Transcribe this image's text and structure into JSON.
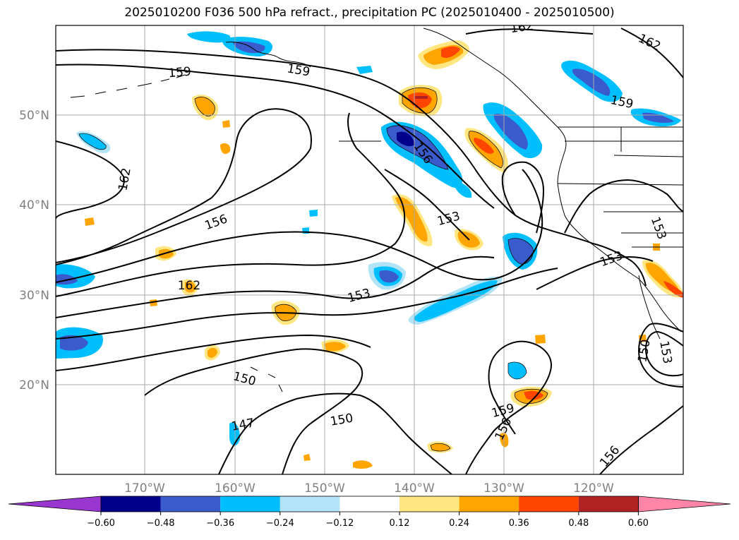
{
  "title": "2025010200 F036 500 hPa refract., precipitation PC (2025010400 - 2025010500)",
  "lat_labels": [
    "50°N",
    "40°N",
    "30°N",
    "20°N"
  ],
  "lon_labels": [
    "170°W",
    "160°W",
    "150°W",
    "140°W",
    "130°W",
    "120°W"
  ],
  "contour_labels": [
    {
      "text": "162"
    },
    {
      "text": "162"
    },
    {
      "text": "159"
    },
    {
      "text": "159"
    },
    {
      "text": "159"
    },
    {
      "text": "162"
    },
    {
      "text": "156"
    },
    {
      "text": "156"
    },
    {
      "text": "153"
    },
    {
      "text": "162"
    },
    {
      "text": "153"
    },
    {
      "text": "153"
    },
    {
      "text": "153"
    },
    {
      "text": "150"
    },
    {
      "text": "150"
    },
    {
      "text": "150"
    },
    {
      "text": "147"
    },
    {
      "text": "159"
    },
    {
      "text": "156"
    },
    {
      "text": "156"
    },
    {
      "text": "153"
    }
  ],
  "colorbar": {
    "colors": [
      "#9a36d0",
      "#00008c",
      "#3a5bcc",
      "#00bfff",
      "#b2e4f8",
      "#ffffff",
      "#ffe680",
      "#ffa500",
      "#ff4500",
      "#b22222",
      "#ff85a8"
    ],
    "ticks": [
      "−0.60",
      "−0.48",
      "−0.36",
      "−0.24",
      "−0.12",
      "0.12",
      "0.24",
      "0.36",
      "0.48",
      "0.60"
    ]
  }
}
